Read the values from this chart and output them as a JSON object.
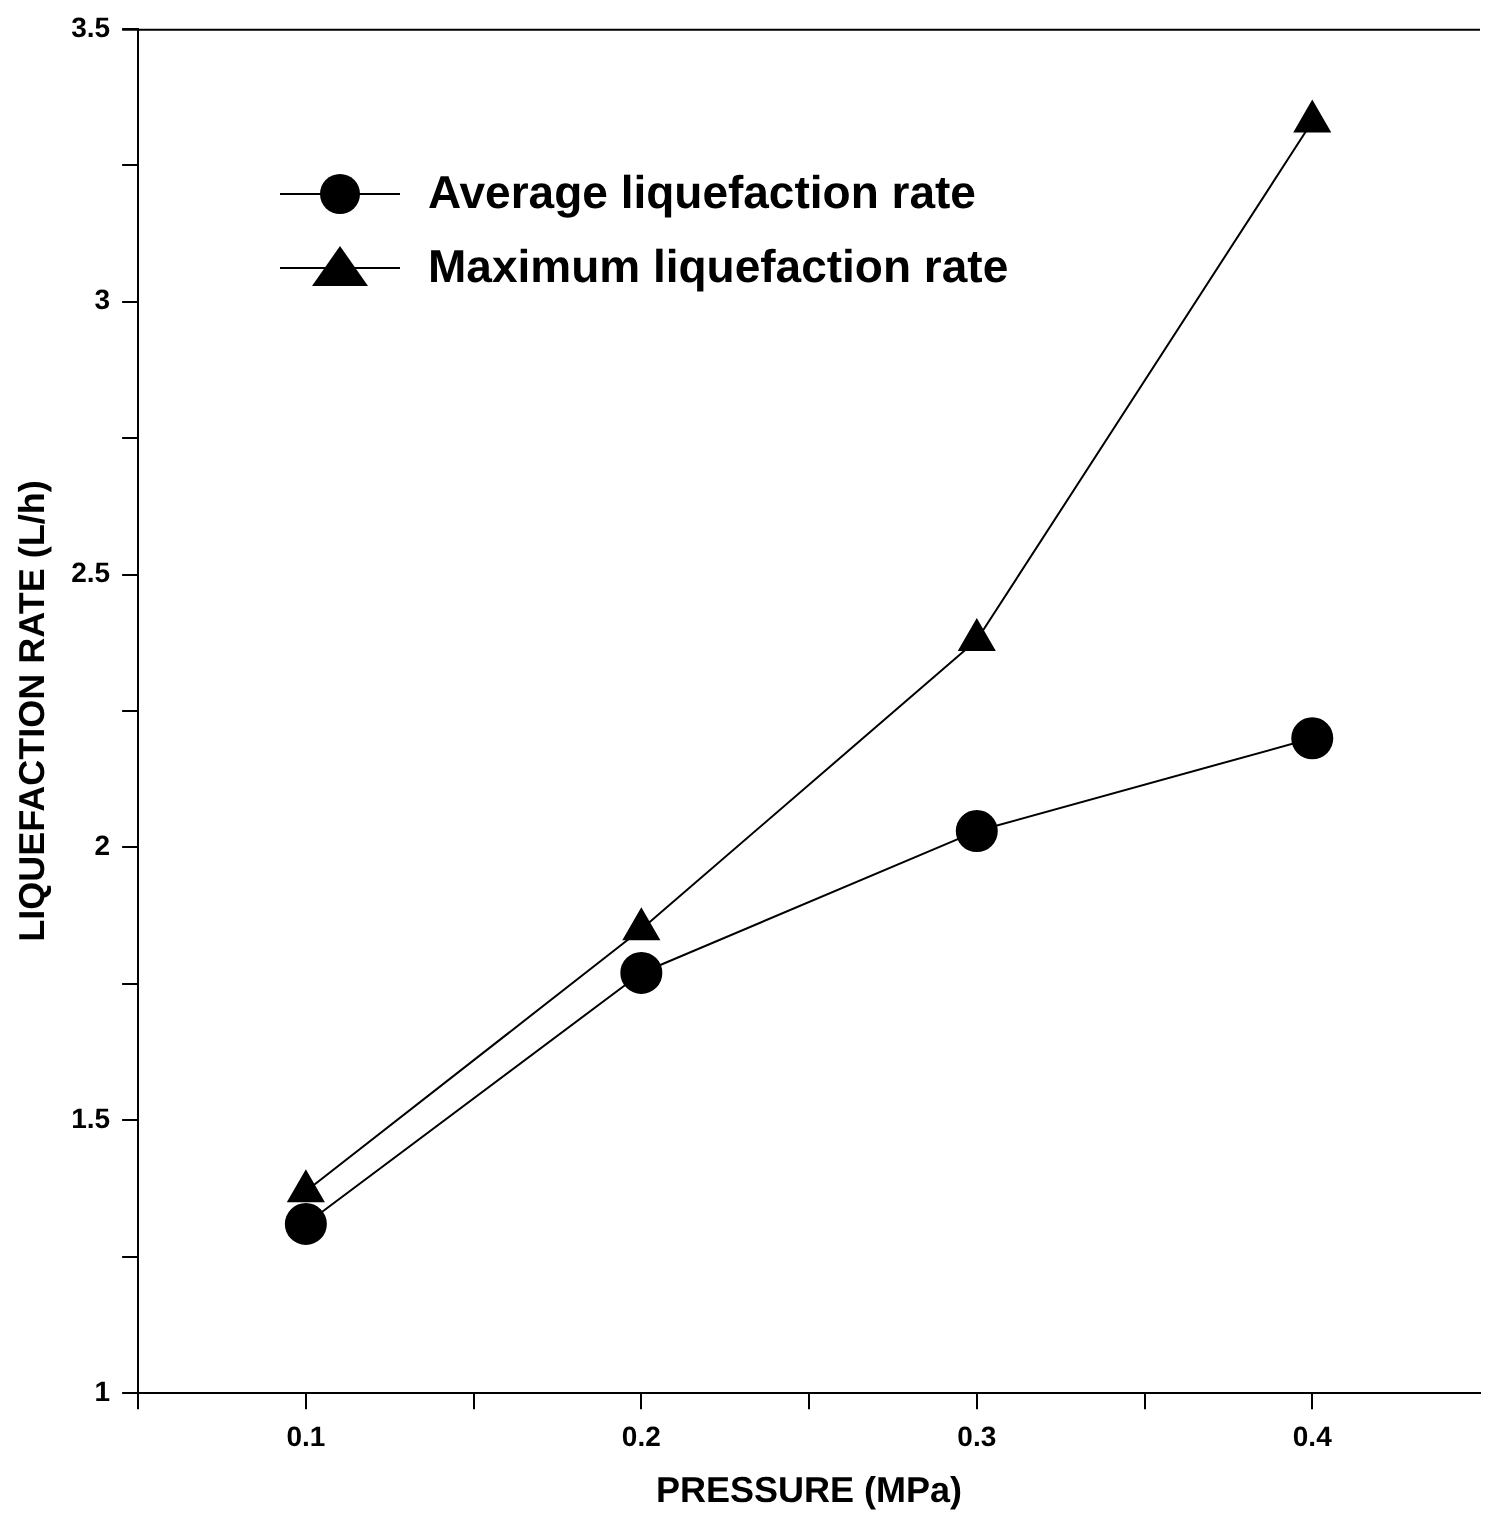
{
  "chart_data": {
    "type": "line",
    "xlabel": "PRESSURE (MPa)",
    "ylabel": "LIQUEFACTION RATE (L/h)",
    "x": [
      0.1,
      0.2,
      0.3,
      0.4
    ],
    "series": [
      {
        "name": "Average liquefaction rate",
        "color": "#000000",
        "marker": "circle",
        "values": [
          1.31,
          1.77,
          2.03,
          2.2
        ]
      },
      {
        "name": "Maximum liquefaction rate",
        "color": "#000000",
        "marker": "triangle",
        "values": [
          1.37,
          1.85,
          2.38,
          3.33
        ]
      }
    ],
    "xlim": [
      0.05,
      0.45
    ],
    "xticks": [
      {
        "value": 0.05,
        "label": null
      },
      0.1,
      {
        "value": 0.15,
        "label": null
      },
      0.2,
      {
        "value": 0.25,
        "label": null
      },
      0.3,
      {
        "value": 0.35,
        "label": null
      },
      0.4
    ],
    "ylim": [
      1,
      3.5
    ],
    "yticks": [
      1,
      {
        "value": 1.25,
        "label": null
      },
      1.5,
      {
        "value": 1.75,
        "label": null
      },
      2,
      {
        "value": 2.25,
        "label": null
      },
      2.5,
      {
        "value": 2.75,
        "label": null
      },
      3,
      {
        "value": 3.25,
        "label": null
      },
      3.5
    ],
    "grid": false,
    "legend": "top left",
    "line_style": "solid"
  }
}
